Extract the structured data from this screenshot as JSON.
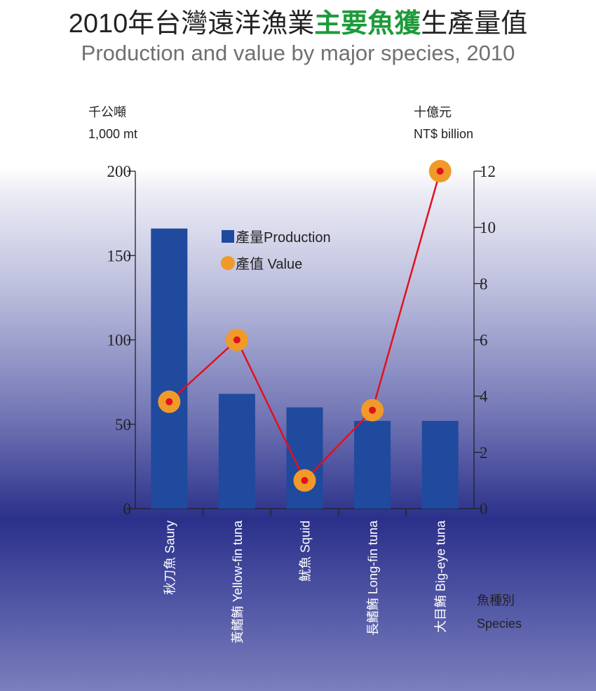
{
  "chart_data": {
    "type": "bar+line",
    "title_part1": "2010年台灣遠洋漁業",
    "title_highlight": "主要魚獲",
    "title_part2": "生產量值",
    "subtitle": "Production and value by major species, 2010",
    "categories": [
      "秋刀魚 Saury",
      "黃鰭鮪 Yellow-fin tuna",
      "魷魚 Squid",
      "長鰭鮪 Long-fin tuna",
      "大目鮪 Big-eye tuna"
    ],
    "series": [
      {
        "name": "產量Production",
        "type": "bar",
        "axis": "left",
        "values": [
          166,
          68,
          60,
          52,
          52
        ]
      },
      {
        "name": "產值 Value",
        "type": "line",
        "axis": "right",
        "values": [
          3.8,
          6.0,
          1.0,
          3.5,
          12.0
        ]
      }
    ],
    "ylabel_left_zh": "千公噸",
    "ylabel_left_en": "1,000 mt",
    "ylabel_right_zh": "十億元",
    "ylabel_right_en": "NT$ billion",
    "xlabel_zh": "魚種別",
    "xlabel_en": "Species",
    "ylim_left": [
      0,
      200
    ],
    "yticks_left": [
      0,
      50,
      100,
      150,
      200
    ],
    "ylim_right": [
      0,
      12
    ],
    "yticks_right": [
      0,
      2,
      4,
      6,
      8,
      10,
      12
    ],
    "legend_placement": "top-center",
    "colors": {
      "bar": "#1f4a9e",
      "line": "#e3101e",
      "marker": "#f09a2a",
      "title_highlight": "#1e9a3a"
    }
  }
}
